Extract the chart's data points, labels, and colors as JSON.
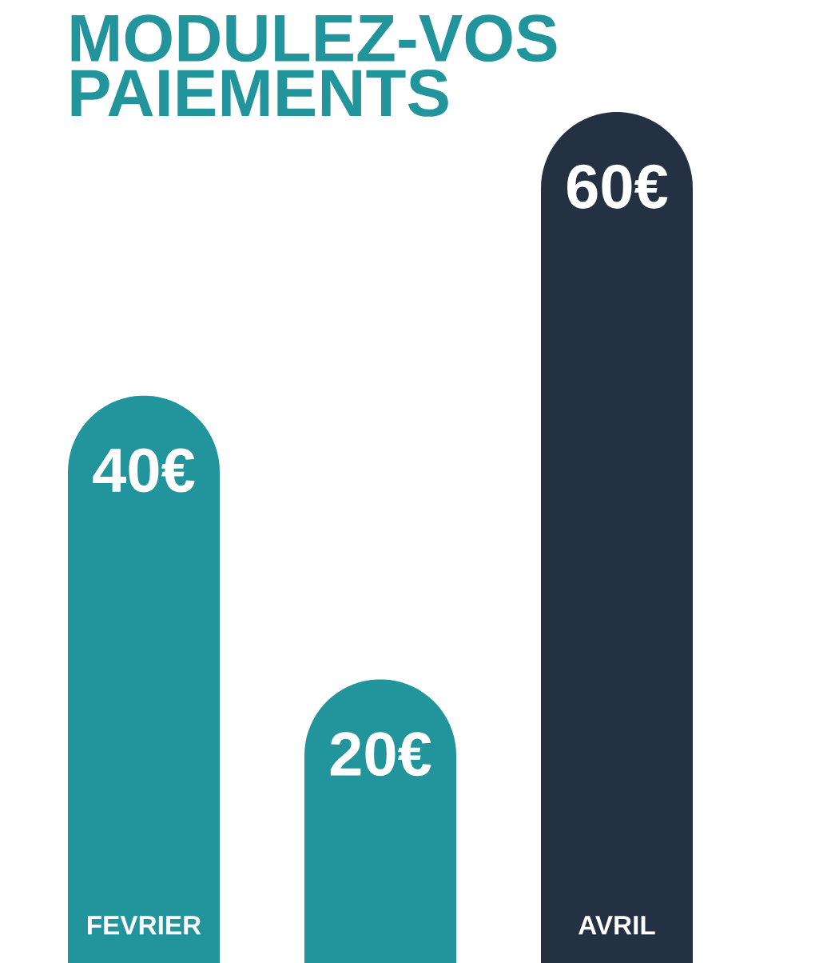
{
  "chart_data": {
    "type": "bar",
    "title": "MODULEZ-VOS\nPAIEMENTS",
    "categories": [
      "FEVRIER",
      null,
      "AVRIL"
    ],
    "values": [
      40,
      20,
      60
    ],
    "colors": [
      "#21949c",
      "#21949c",
      "#233143"
    ],
    "value_labels": [
      "40€",
      "20€",
      "60€"
    ],
    "ylim": [
      0,
      60
    ],
    "tick_labels": false
  }
}
